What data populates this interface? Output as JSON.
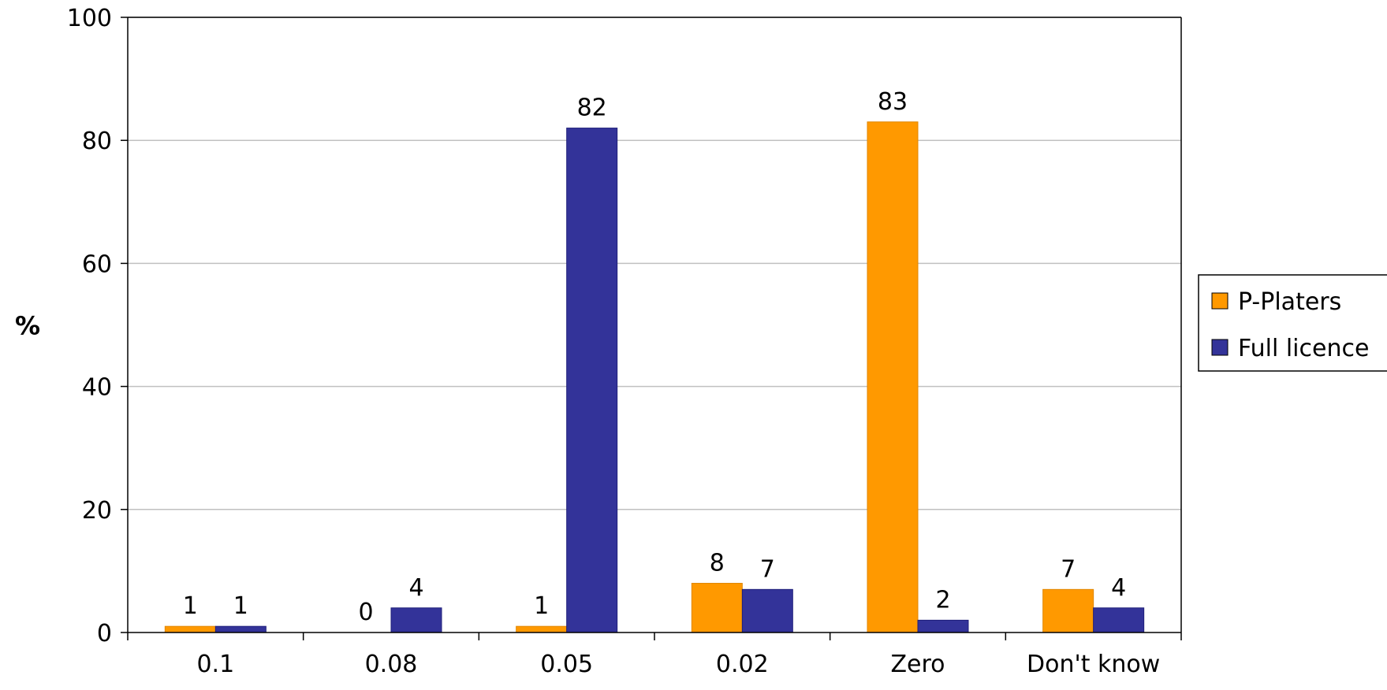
{
  "chart_data": {
    "type": "bar",
    "title": "",
    "xlabel": "",
    "ylabel": "%",
    "ylim": [
      0,
      100
    ],
    "yticks": [
      0,
      20,
      40,
      60,
      80,
      100
    ],
    "grid": true,
    "legend_position": "right",
    "categories": [
      "0.1",
      "0.08",
      "0.05",
      "0.02",
      "Zero",
      "Don't know"
    ],
    "series": [
      {
        "name": "P-Platers",
        "color": "#FF9900",
        "values": [
          1,
          0,
          1,
          8,
          83,
          7
        ]
      },
      {
        "name": "Full licence",
        "color": "#333399",
        "values": [
          1,
          4,
          82,
          7,
          2,
          4
        ]
      }
    ]
  }
}
